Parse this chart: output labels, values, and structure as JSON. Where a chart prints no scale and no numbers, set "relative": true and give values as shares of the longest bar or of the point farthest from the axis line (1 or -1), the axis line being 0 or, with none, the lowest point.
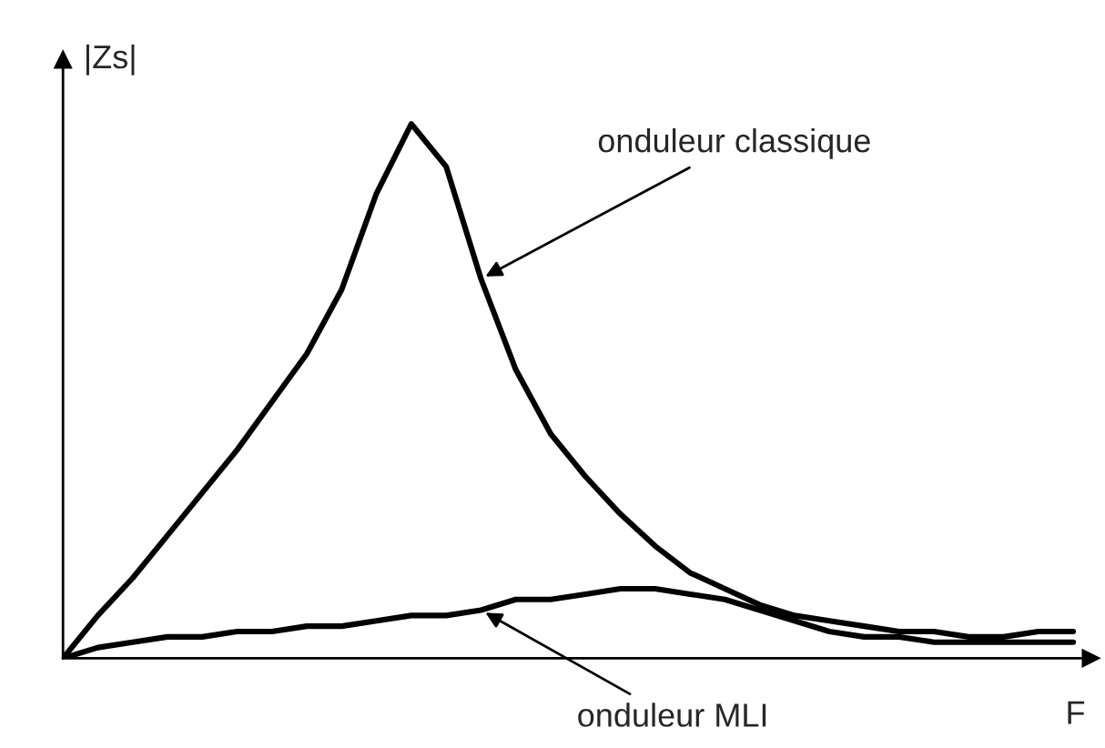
{
  "chart_data": {
    "type": "line",
    "relative": true,
    "xlabel": "F",
    "ylabel": "|Zs|",
    "categories": [
      null,
      null,
      null,
      null,
      null,
      null,
      null,
      null,
      null,
      null,
      null,
      null,
      null,
      null,
      null,
      null,
      null,
      null,
      null,
      null,
      null,
      null,
      null,
      null,
      null,
      null,
      null,
      null,
      null,
      null
    ],
    "series": [
      {
        "color": "#000000",
        "values": [
          0,
          0.08,
          0.15,
          0.23,
          0.31,
          0.39,
          0.48,
          0.57,
          0.69,
          0.87,
          1,
          0.92,
          0.71,
          0.54,
          0.42,
          0.34,
          0.27,
          0.21,
          0.16,
          0.13,
          0.1,
          0.08,
          0.07,
          0.06,
          0.05,
          0.05,
          0.04,
          0.04,
          0.05,
          0.05
        ]
      },
      {
        "color": "#000000",
        "values": [
          0,
          0.02,
          0.03,
          0.04,
          0.04,
          0.05,
          0.05,
          0.06,
          0.06,
          0.07,
          0.08,
          0.08,
          0.09,
          0.11,
          0.11,
          0.12,
          0.13,
          0.13,
          0.12,
          0.11,
          0.09,
          0.07,
          0.05,
          0.04,
          0.04,
          0.03,
          0.03,
          0.03,
          0.03,
          0.03
        ]
      }
    ],
    "annotations": [
      "onduleur classique",
      "onduleur MLI"
    ],
    "legend": false,
    "marker": "none",
    "line_style": "solid"
  }
}
